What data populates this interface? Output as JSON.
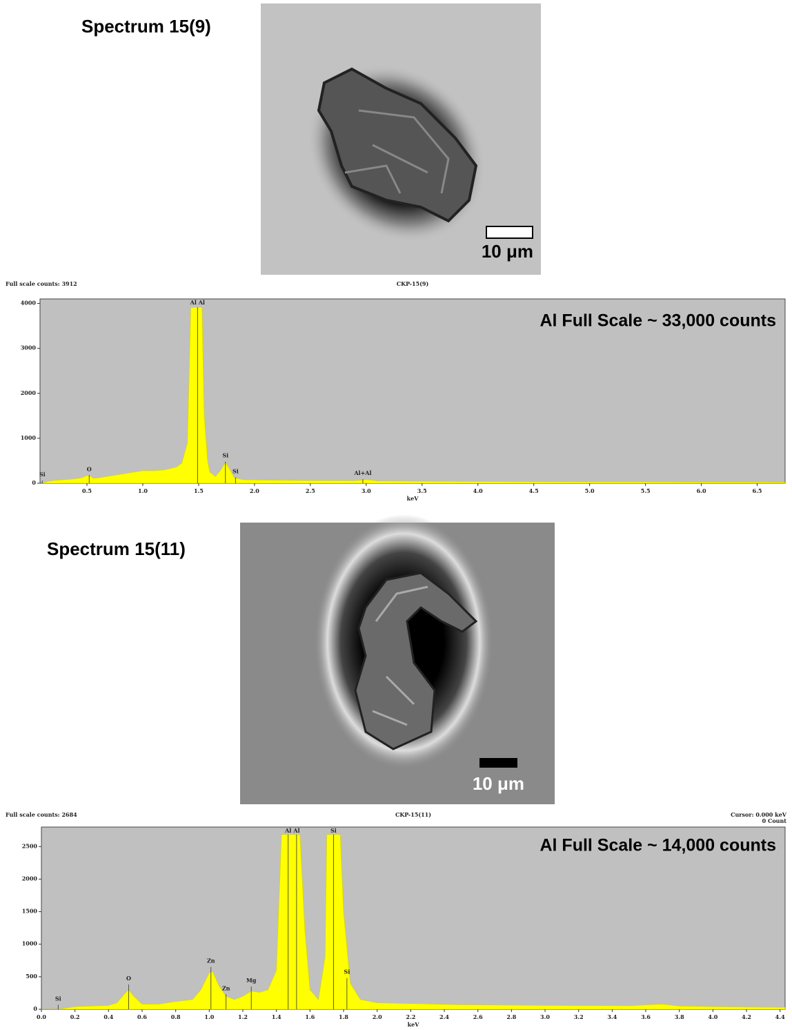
{
  "panels": [
    {
      "title": "Spectrum 15(9)",
      "scale_bar": "10 μm"
    },
    {
      "title": "Spectrum 15(11)",
      "scale_bar": "10 μm"
    }
  ],
  "chart_data": [
    {
      "type": "area",
      "full_scale_label": "Full scale counts: 3912",
      "title": "CKP-15(9)",
      "annotation": "Al Full Scale ~ 33,000 counts",
      "x_label": "keV",
      "color": "#ffff00",
      "x": [
        0.1,
        0.12,
        0.15,
        0.2,
        0.3,
        0.4,
        0.45,
        0.5,
        0.53,
        0.56,
        0.6,
        0.7,
        0.8,
        0.9,
        1.0,
        1.1,
        1.2,
        1.3,
        1.35,
        1.4,
        1.43,
        1.47,
        1.5,
        1.53,
        1.55,
        1.58,
        1.6,
        1.65,
        1.7,
        1.74,
        1.78,
        1.82,
        1.9,
        2.0,
        2.5,
        2.9,
        3.0,
        3.1,
        3.5,
        4.0,
        4.5,
        5.0,
        5.5,
        6.0,
        6.5,
        6.75
      ],
      "values": [
        0,
        20,
        40,
        60,
        80,
        100,
        120,
        170,
        160,
        110,
        120,
        160,
        200,
        240,
        280,
        280,
        300,
        360,
        450,
        900,
        3912,
        3912,
        3912,
        3912,
        1500,
        500,
        250,
        150,
        300,
        470,
        300,
        120,
        80,
        70,
        60,
        55,
        80,
        50,
        45,
        40,
        35,
        30,
        30,
        25,
        25,
        20
      ],
      "xlim": [
        0.08,
        6.75
      ],
      "ylim": [
        0,
        4100
      ],
      "xticks": [
        0.5,
        {
          "value": 1,
          "label": "1.0"
        },
        1.5,
        {
          "value": 2,
          "label": "2.0"
        },
        2.5,
        {
          "value": 3,
          "label": "3.0"
        },
        3.5,
        {
          "value": 4,
          "label": "4.0"
        },
        4.5,
        {
          "value": 5,
          "label": "5.0"
        },
        5.5,
        {
          "value": 6,
          "label": "6.0"
        },
        6.5
      ],
      "yticks": [
        0,
        1000,
        2000,
        3000,
        4000
      ],
      "peak_labels": [
        {
          "text": "Si",
          "x": 0.1,
          "y": 60
        },
        {
          "text": "O",
          "x": 0.52,
          "y": 180
        },
        {
          "text": "Al Al",
          "x": 1.49,
          "y": 3912
        },
        {
          "text": "Si",
          "x": 1.74,
          "y": 480
        },
        {
          "text": "Si",
          "x": 1.83,
          "y": 130
        },
        {
          "text": "Al+Al",
          "x": 2.97,
          "y": 90
        }
      ]
    },
    {
      "type": "area",
      "full_scale_label": "Full scale counts: 2684",
      "title": "CKP-15(11)",
      "annotation": "Al Full Scale ~ 14,000 counts",
      "x_label": "keV",
      "color": "#ffff00",
      "cursor": "Cursor:   0.000 keV",
      "cursor_counts": "0 Count",
      "x": [
        0,
        0.1,
        0.15,
        0.2,
        0.3,
        0.4,
        0.45,
        0.5,
        0.52,
        0.55,
        0.6,
        0.7,
        0.8,
        0.9,
        0.95,
        1.0,
        1.02,
        1.06,
        1.1,
        1.15,
        1.2,
        1.25,
        1.3,
        1.35,
        1.4,
        1.43,
        1.54,
        1.57,
        1.6,
        1.65,
        1.69,
        1.7,
        1.78,
        1.8,
        1.84,
        1.9,
        2.0,
        2.5,
        3.0,
        3.5,
        3.7,
        3.8,
        4.0,
        4.43
      ],
      "values": [
        0,
        0,
        20,
        40,
        50,
        60,
        100,
        250,
        300,
        200,
        80,
        80,
        120,
        150,
        300,
        560,
        580,
        350,
        200,
        150,
        200,
        280,
        260,
        300,
        600,
        2684,
        2684,
        1200,
        300,
        150,
        800,
        2684,
        2684,
        1500,
        400,
        150,
        100,
        70,
        60,
        55,
        80,
        50,
        40,
        30
      ],
      "xlim": [
        0,
        4.43
      ],
      "ylim": [
        0,
        2800
      ],
      "xticks": [
        {
          "value": 0,
          "label": "0.0"
        },
        0.2,
        0.4,
        0.6,
        0.8,
        {
          "value": 1,
          "label": "1.0"
        },
        1.2,
        1.4,
        1.6,
        1.8,
        {
          "value": 2,
          "label": "2.0"
        },
        2.2,
        2.4,
        2.6,
        2.8,
        {
          "value": 3,
          "label": "3.0"
        },
        3.2,
        3.4,
        3.6,
        3.8,
        {
          "value": 4,
          "label": "4.0"
        },
        4.2,
        4.4
      ],
      "yticks": [
        0,
        500,
        1000,
        1500,
        2000,
        2500
      ],
      "peak_labels": [
        {
          "text": "Si",
          "x": 0.1,
          "y": 70
        },
        {
          "text": "O",
          "x": 0.52,
          "y": 380
        },
        {
          "text": "Zn",
          "x": 1.01,
          "y": 650
        },
        {
          "text": "Zn",
          "x": 1.1,
          "y": 230
        },
        {
          "text": "Mg",
          "x": 1.25,
          "y": 350
        },
        {
          "text": "Al",
          "x": 1.47,
          "y": 2684
        },
        {
          "text": "Al",
          "x": 1.52,
          "y": 2684
        },
        {
          "text": "Si",
          "x": 1.74,
          "y": 2684
        },
        {
          "text": "Si",
          "x": 1.82,
          "y": 480
        }
      ]
    }
  ]
}
